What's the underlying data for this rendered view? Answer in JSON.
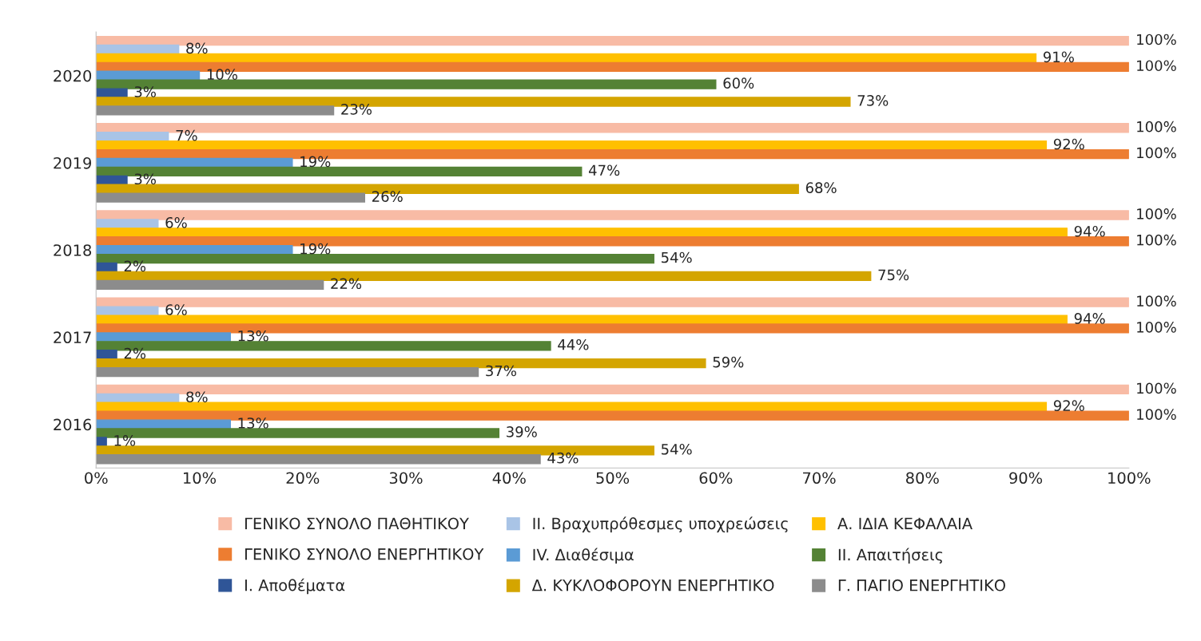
{
  "chart_data": {
    "type": "bar",
    "orientation": "horizontal",
    "categories": [
      "2020",
      "2019",
      "2018",
      "2017",
      "2016"
    ],
    "xlim": [
      0,
      100
    ],
    "xticks": [
      {
        "value": 0,
        "label": "0%"
      },
      {
        "value": 10,
        "label": "10%"
      },
      {
        "value": 20,
        "label": "20%"
      },
      {
        "value": 30,
        "label": "30%"
      },
      {
        "value": 40,
        "label": "40%"
      },
      {
        "value": 50,
        "label": "50%"
      },
      {
        "value": 60,
        "label": "60%"
      },
      {
        "value": 70,
        "label": "70%"
      },
      {
        "value": 80,
        "label": "80%"
      },
      {
        "value": 90,
        "label": "90%"
      },
      {
        "value": 100,
        "label": "100%"
      }
    ],
    "grid": false,
    "legend": "bottom",
    "series": [
      {
        "name": "ΓΕΝΙΚΟ ΣΥΝΟΛΟ ΠΑΘΗΤΙΚΟΥ",
        "color": "#f8bba5",
        "values": [
          100,
          100,
          100,
          100,
          100
        ],
        "value_labels": [
          "100%",
          "100%",
          "100%",
          "100%",
          "100%"
        ]
      },
      {
        "name": "ΙΙ. Βραχυπρόθεσμες υποχρεώσεις",
        "color": "#a9c4e6",
        "values": [
          8,
          7,
          6,
          6,
          8
        ],
        "value_labels": [
          "8%",
          "7%",
          "6%",
          "6%",
          "8%"
        ]
      },
      {
        "name": "Α. ΙΔΙΑ ΚΕΦΑΛΑΙΑ",
        "color": "#ffc000",
        "values": [
          91,
          92,
          94,
          94,
          92
        ],
        "value_labels": [
          "91%",
          "92%",
          "94%",
          "94%",
          "92%"
        ]
      },
      {
        "name": "ΓΕΝΙΚΟ ΣΥΝΟΛΟ ΕΝΕΡΓΗΤΙΚΟΥ",
        "color": "#ed7d31",
        "values": [
          100,
          100,
          100,
          100,
          100
        ],
        "value_labels": [
          "100%",
          "100%",
          "100%",
          "100%",
          "100%"
        ]
      },
      {
        "name": "IV. Διαθέσιμα",
        "color": "#5b9bd5",
        "values": [
          10,
          19,
          19,
          13,
          13
        ],
        "value_labels": [
          "10%",
          "19%",
          "19%",
          "13%",
          "13%"
        ]
      },
      {
        "name": "ΙΙ. Απαιτήσεις",
        "color": "#548235",
        "values": [
          60,
          47,
          54,
          44,
          39
        ],
        "value_labels": [
          "60%",
          "47%",
          "54%",
          "44%",
          "39%"
        ]
      },
      {
        "name": "Ι. Αποθέματα",
        "color": "#2f5597",
        "values": [
          3,
          3,
          2,
          2,
          1
        ],
        "value_labels": [
          "3%",
          "3%",
          "2%",
          "2%",
          "1%"
        ]
      },
      {
        "name": "Δ. ΚΥΚΛΟΦΟΡΟΥΝ ΕΝΕΡΓΗΤΙΚΟ",
        "color": "#d4a500",
        "values": [
          73,
          68,
          75,
          59,
          54
        ],
        "value_labels": [
          "73%",
          "68%",
          "75%",
          "59%",
          "54%"
        ]
      },
      {
        "name": "Γ. ΠΑΓΙΟ ΕΝΕΡΓΗΤΙΚΟ",
        "color": "#8c8c8c",
        "values": [
          23,
          26,
          22,
          37,
          43
        ],
        "value_labels": [
          "23%",
          "26%",
          "22%",
          "37%",
          "43%"
        ]
      }
    ]
  }
}
